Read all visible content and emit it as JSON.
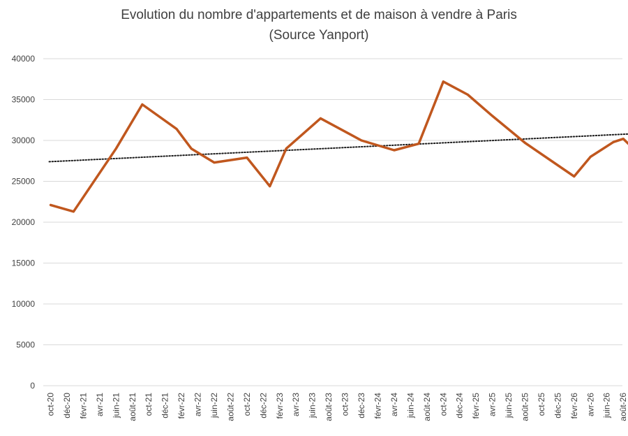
{
  "chart_data": {
    "type": "line",
    "title": "Evolution du nombre d'appartements et de maison à vendre à Paris",
    "subtitle": "(Source Yanport)",
    "xlabel": "",
    "ylabel": "",
    "ylim": [
      0,
      40000
    ],
    "yticks": [
      0,
      5000,
      10000,
      15000,
      20000,
      25000,
      30000,
      35000,
      40000
    ],
    "grid": true,
    "legend": "none",
    "categories": [
      "oct-20",
      "déc-20",
      "févr-21",
      "avr-21",
      "juin-21",
      "août-21",
      "oct-21",
      "déc-21",
      "févr-22",
      "avr-22",
      "juin-22",
      "août-22",
      "oct-22",
      "déc-22",
      "févr-23",
      "avr-23",
      "juin-23",
      "août-23",
      "oct-23",
      "déc-23",
      "févr-24",
      "avr-24",
      "juin-24",
      "août-24",
      "oct-24",
      "déc-24",
      "févr-25",
      "avr-25",
      "juin-25",
      "août-25",
      "oct-25",
      "déc-25",
      "févr-26",
      "avr-26",
      "juin-26",
      "août-26"
    ],
    "points": [
      {
        "x": 0,
        "y": 22100
      },
      {
        "x": 1.4,
        "y": 21300
      },
      {
        "x": 4,
        "y": 29000
      },
      {
        "x": 5.6,
        "y": 34400
      },
      {
        "x": 7.7,
        "y": 31400
      },
      {
        "x": 8.6,
        "y": 29000
      },
      {
        "x": 10,
        "y": 27300
      },
      {
        "x": 12,
        "y": 27900
      },
      {
        "x": 13.4,
        "y": 24400
      },
      {
        "x": 14.4,
        "y": 29000
      },
      {
        "x": 16.5,
        "y": 32700
      },
      {
        "x": 19,
        "y": 30000
      },
      {
        "x": 21,
        "y": 28800
      },
      {
        "x": 22.5,
        "y": 29600
      },
      {
        "x": 24,
        "y": 37200
      },
      {
        "x": 25.5,
        "y": 35600
      },
      {
        "x": 27,
        "y": 33000
      },
      {
        "x": 29,
        "y": 29700
      },
      {
        "x": 32,
        "y": 25600
      },
      {
        "x": 33,
        "y": 28000
      },
      {
        "x": 34.4,
        "y": 29800
      },
      {
        "x": 35,
        "y": 30200
      },
      {
        "x": 36,
        "y": 28300
      }
    ],
    "trendline": {
      "start": 27400,
      "end": 30800
    },
    "colors": {
      "series": "#c0571e",
      "trend": "#1a1a1a",
      "grid": "#d9d9d9",
      "text": "#404040"
    }
  }
}
